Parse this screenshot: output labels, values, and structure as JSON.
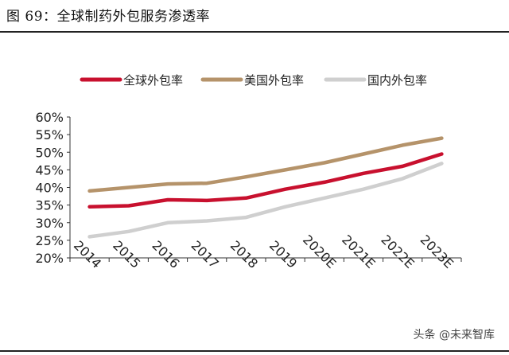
{
  "figure": {
    "title": "图 69：全球制药外包服务渗透率",
    "watermark": "头条 @未来智库"
  },
  "chart_data": {
    "type": "line",
    "categories": [
      "2014",
      "2015",
      "2016",
      "2017",
      "2018",
      "2019",
      "2020E",
      "2021E",
      "2022E",
      "2023E"
    ],
    "series": [
      {
        "name": "全球外包率",
        "color": "#c8102e",
        "values": [
          34.5,
          34.8,
          36.5,
          36.3,
          37.0,
          39.5,
          41.5,
          44.0,
          46.0,
          49.5
        ]
      },
      {
        "name": "美国外包率",
        "color": "#b5936a",
        "values": [
          39.0,
          40.0,
          41.0,
          41.2,
          43.0,
          45.0,
          47.0,
          49.5,
          52.0,
          54.0
        ]
      },
      {
        "name": "国内外包率",
        "color": "#cfcfcf",
        "values": [
          26.0,
          27.5,
          30.0,
          30.5,
          31.5,
          34.5,
          37.0,
          39.5,
          42.5,
          46.8
        ]
      }
    ],
    "y_ticks": [
      "20%",
      "25%",
      "30%",
      "35%",
      "40%",
      "45%",
      "50%",
      "55%",
      "60%"
    ],
    "ylim": [
      20,
      60
    ],
    "grid": false,
    "legend": "top"
  }
}
